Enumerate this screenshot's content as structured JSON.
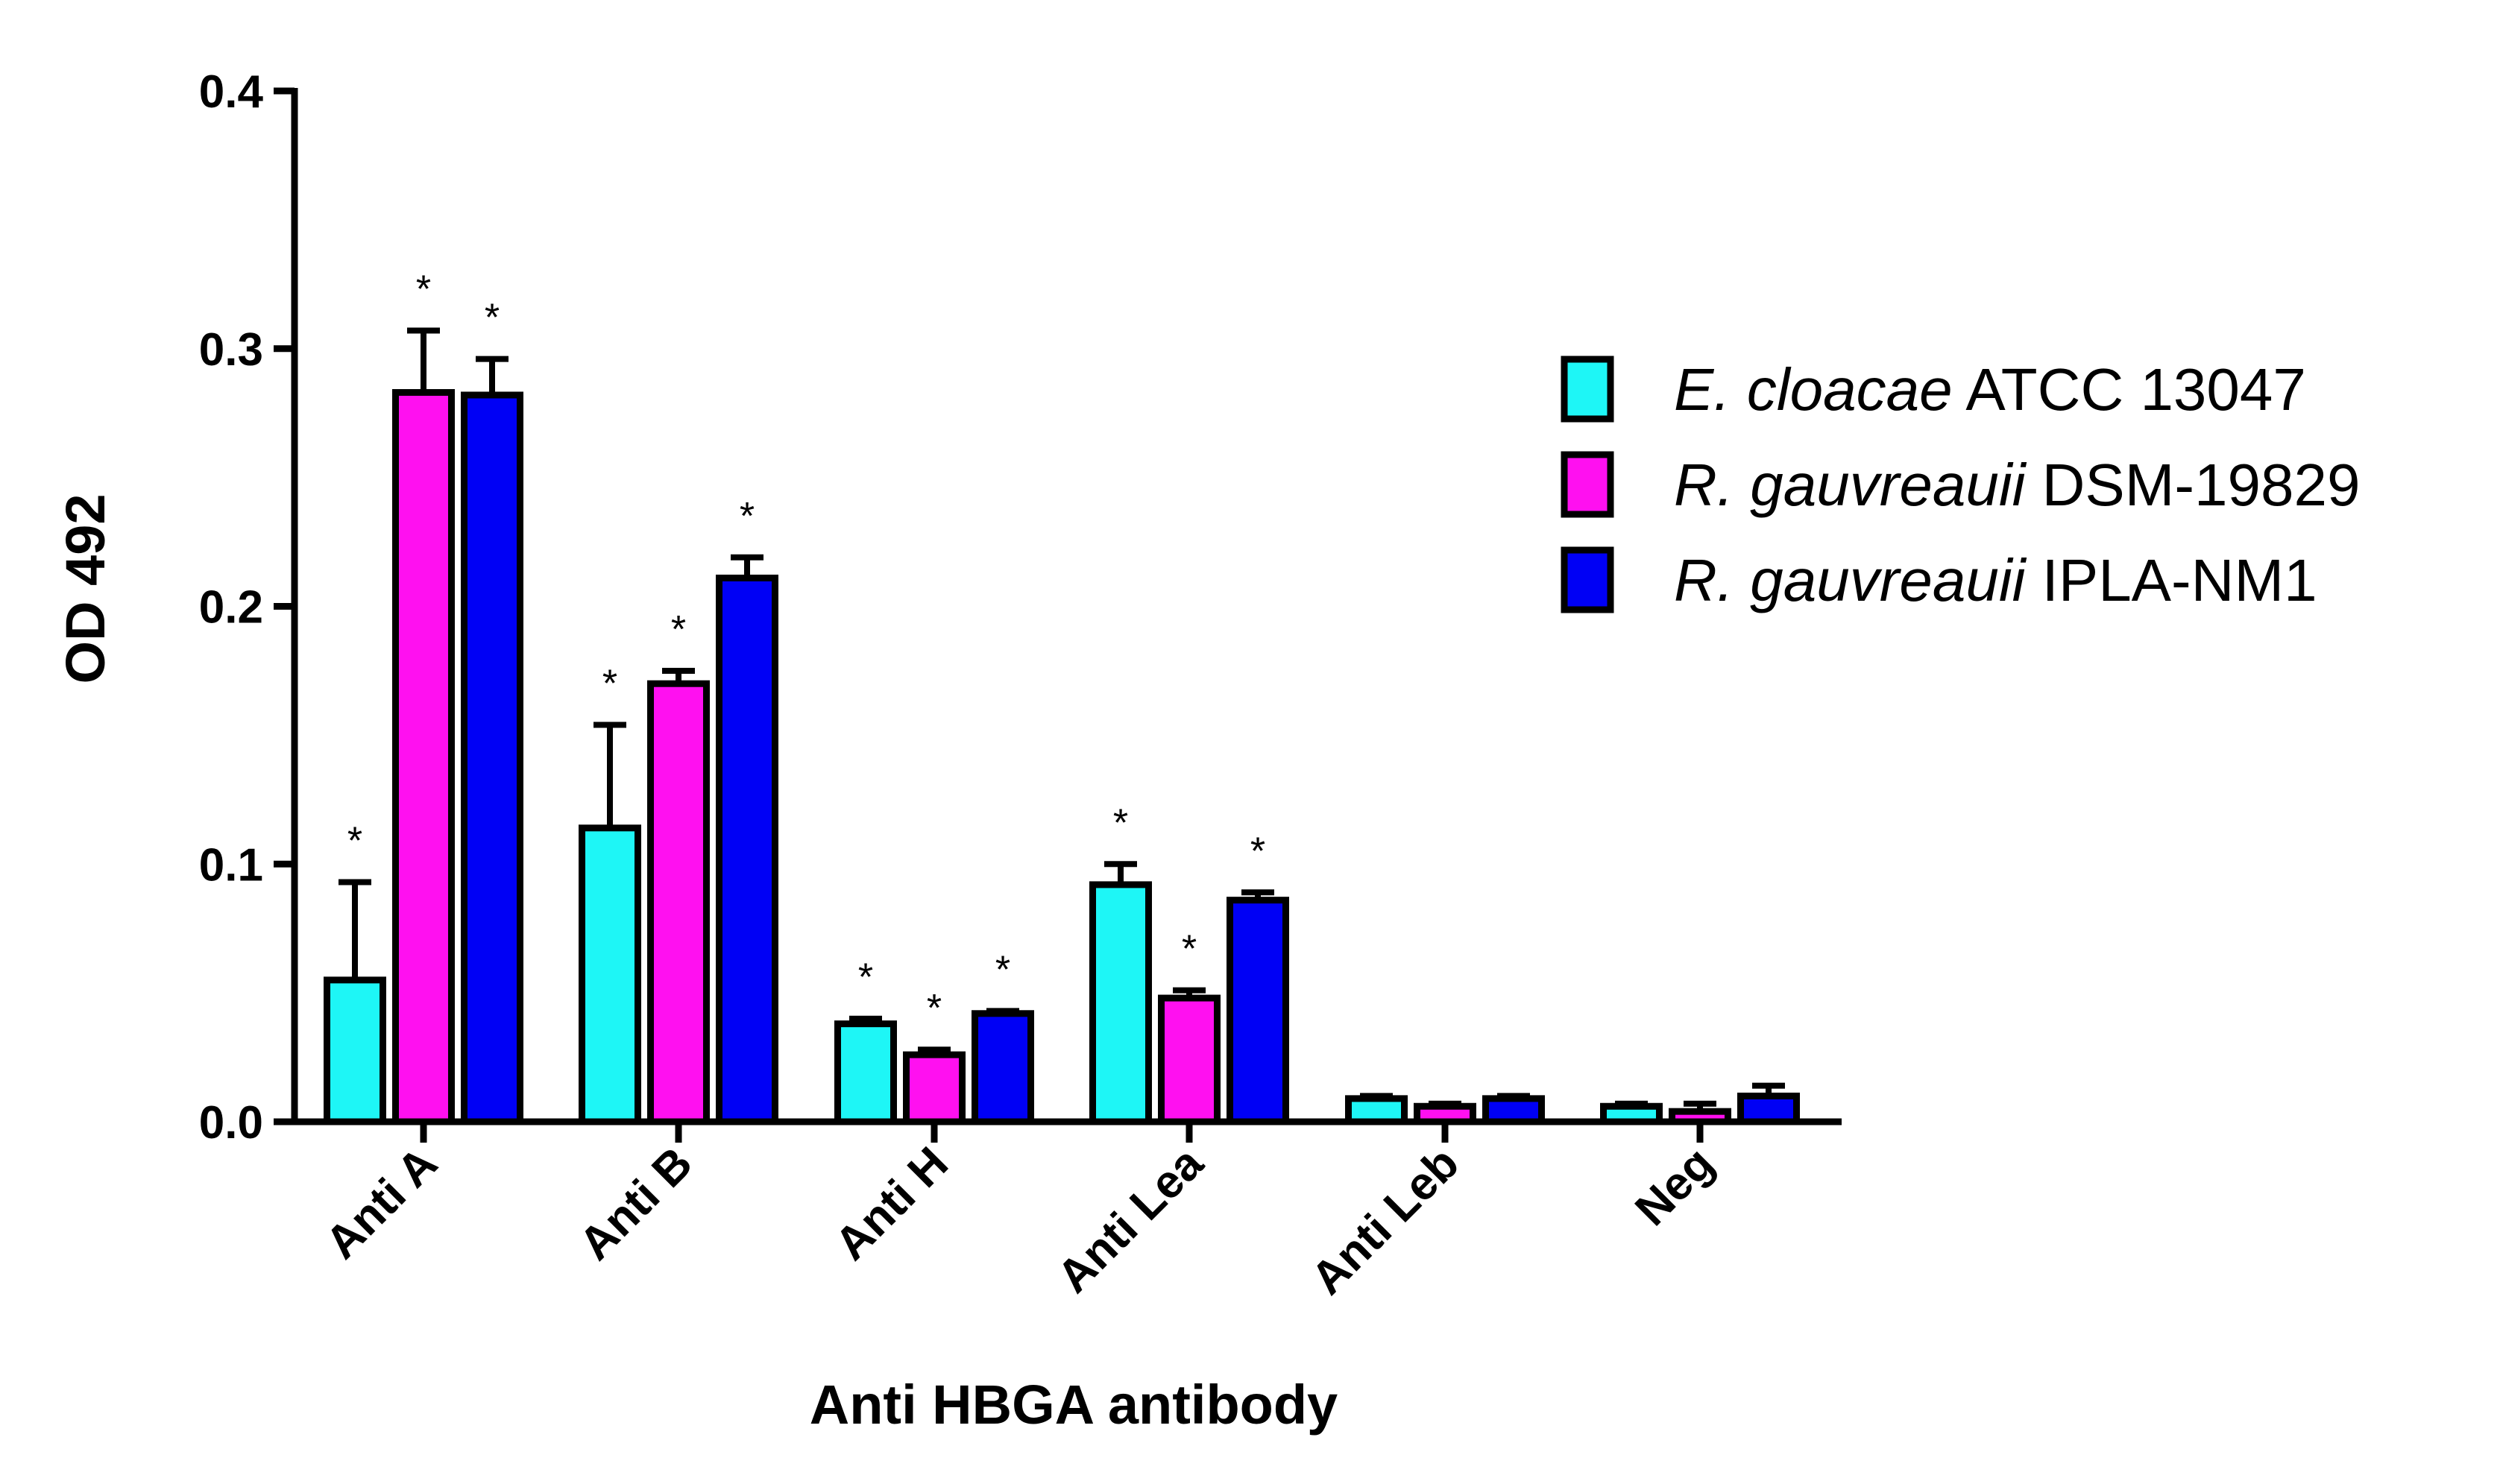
{
  "chart_data": {
    "type": "bar",
    "xlabel": "Anti HBGA antibody",
    "ylabel": "OD 492",
    "ylim": [
      0,
      0.4
    ],
    "yticks": [
      "0.0",
      "0.1",
      "0.2",
      "0.3",
      "0.4"
    ],
    "categories": [
      "Anti A",
      "Anti B",
      "Anti H",
      "Anti Lea",
      "Anti Leb",
      "Neg"
    ],
    "series": [
      {
        "name_italic": "E. cloacae",
        "name_plain": " ATCC 13047",
        "color": "#1EF6F6",
        "values": [
          0.055,
          0.114,
          0.038,
          0.092,
          0.009,
          0.006
        ],
        "errors": [
          0.038,
          0.04,
          0.002,
          0.008,
          0.001,
          0.001
        ],
        "significant": [
          true,
          true,
          true,
          true,
          false,
          false
        ]
      },
      {
        "name_italic": "R. gauvreauii",
        "name_plain": " DSM-19829",
        "color": "#FF10F0",
        "values": [
          0.283,
          0.17,
          0.026,
          0.048,
          0.006,
          0.004
        ],
        "errors": [
          0.024,
          0.005,
          0.002,
          0.003,
          0.001,
          0.003
        ],
        "significant": [
          true,
          true,
          true,
          true,
          false,
          false
        ]
      },
      {
        "name_italic": "R. gauvreauii",
        "name_plain": " IPLA-NM1",
        "color": "#0000F5",
        "values": [
          0.282,
          0.211,
          0.042,
          0.086,
          0.009,
          0.01
        ],
        "errors": [
          0.014,
          0.008,
          0.001,
          0.003,
          0.001,
          0.004
        ],
        "significant": [
          true,
          true,
          true,
          true,
          false,
          false
        ]
      }
    ],
    "significance_marker": "*",
    "legend_position": "right"
  }
}
